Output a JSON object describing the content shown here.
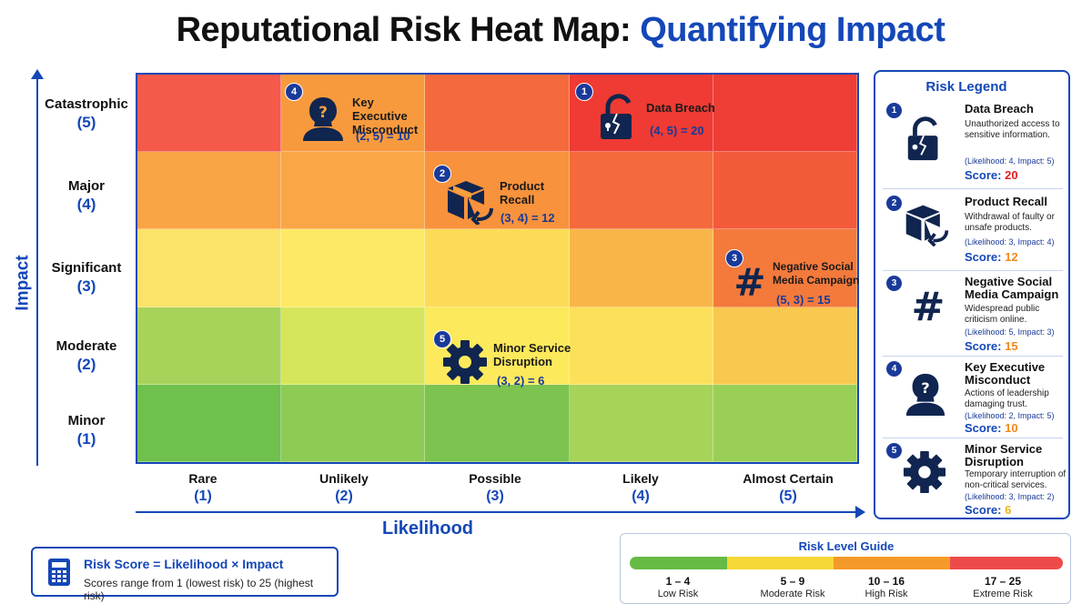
{
  "title": {
    "main": "Reputational Risk Heat Map:",
    "accent": "Quantifying Impact"
  },
  "axes": {
    "y_label": "Impact",
    "x_label": "Likelihood",
    "y_levels": [
      {
        "name": "Catastrophic",
        "value": "(5)"
      },
      {
        "name": "Major",
        "value": "(4)"
      },
      {
        "name": "Significant",
        "value": "(3)"
      },
      {
        "name": "Moderate",
        "value": "(2)"
      },
      {
        "name": "Minor",
        "value": "(1)"
      }
    ],
    "x_levels": [
      {
        "name": "Rare",
        "value": "(1)"
      },
      {
        "name": "Unlikely",
        "value": "(2)"
      },
      {
        "name": "Possible",
        "value": "(3)"
      },
      {
        "name": "Likely",
        "value": "(4)"
      },
      {
        "name": "Almost Certain",
        "value": "(5)"
      }
    ]
  },
  "cell_colors": [
    [
      "#f4594a",
      "#f79a3e",
      "#f56a3c",
      "#ef3b33",
      "#ee3e36"
    ],
    [
      "#f9a445",
      "#f9a646",
      "#f8923c",
      "#f56a3c",
      "#f25a3a"
    ],
    [
      "#fbe36a",
      "#fde965",
      "#fcdc57",
      "#f9b648",
      "#f47a3c"
    ],
    [
      "#a8d35a",
      "#d6e65c",
      "#fde95c",
      "#fde05a",
      "#f9c84e"
    ],
    [
      "#6fc04d",
      "#8ecb55",
      "#7cc34f",
      "#a6d35a",
      "#9acf57"
    ]
  ],
  "markers": [
    {
      "num": "1",
      "name": "Data Breach",
      "score": "(4, 5) = 20",
      "icon": "broken-lock-icon"
    },
    {
      "num": "2",
      "name": "Product Recall",
      "score": "(3, 4) = 12",
      "icon": "box-return-icon"
    },
    {
      "num": "3",
      "name": "Negative Social Media Campaign",
      "score": "(5, 3) = 15",
      "icon": "hashtag-icon"
    },
    {
      "num": "4",
      "name": "Key Executive Misconduct",
      "score": "(2, 5) = 10",
      "icon": "person-question-icon"
    },
    {
      "num": "5",
      "name": "Minor Service Disruption",
      "score": "(3, 2) = 6",
      "icon": "gear-icon"
    }
  ],
  "legend": {
    "title": "Risk Legend",
    "items": [
      {
        "num": "1",
        "name": "Data Breach",
        "desc": "Unauthorized access to sensitive information.",
        "coords": "(Likelihood: 4, Impact: 5)",
        "score_label": "Score:",
        "score": "20",
        "score_color": "#e02020"
      },
      {
        "num": "2",
        "name": "Product Recall",
        "desc": "Withdrawal of faulty or unsafe products.",
        "coords": "(Likelihood: 3, Impact: 4)",
        "score_label": "Score:",
        "score": "12",
        "score_color": "#f08a1c"
      },
      {
        "num": "3",
        "name": "Negative Social Media Campaign",
        "desc": "Widespread public criticism online.",
        "coords": "(Likelihood: 5, Impact: 3)",
        "score_label": "Score:",
        "score": "15",
        "score_color": "#f08a1c"
      },
      {
        "num": "4",
        "name": "Key Executive Misconduct",
        "desc": "Actions of leadership damaging trust.",
        "coords": "(Likelihood: 2, Impact: 5)",
        "score_label": "Score:",
        "score": "10",
        "score_color": "#f08a1c"
      },
      {
        "num": "5",
        "name": "Minor Service Disruption",
        "desc": "Temporary interruption of non-critical services.",
        "coords": "(Likelihood: 3, Impact: 2)",
        "score_label": "Score:",
        "score": "6",
        "score_color": "#f0b41c"
      }
    ]
  },
  "formula": {
    "title": "Risk Score = Likelihood × Impact",
    "subtitle": "Scores range from 1 (lowest risk) to 25 (highest risk)",
    "icon": "calculator-icon"
  },
  "guide": {
    "title": "Risk Level Guide",
    "levels": [
      {
        "range": "1 – 4",
        "label": "Low Risk",
        "color": "#66bb44"
      },
      {
        "range": "5 – 9",
        "label": "Moderate Risk",
        "color": "#f5d835"
      },
      {
        "range": "10 – 16",
        "label": "High Risk",
        "color": "#f59a28"
      },
      {
        "range": "17 – 25",
        "label": "Extreme Risk",
        "color": "#ee4a4a"
      }
    ]
  }
}
